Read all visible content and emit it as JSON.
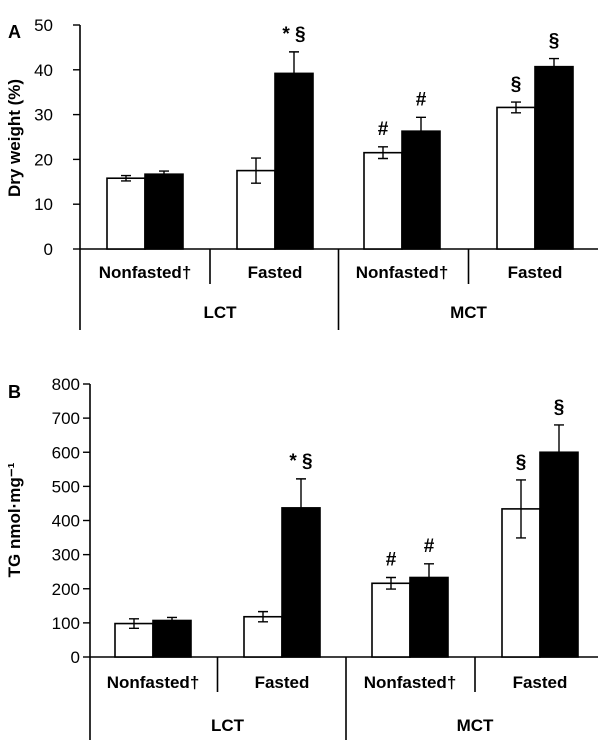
{
  "chart_data": [
    {
      "type": "bar",
      "panel": "A",
      "ylabel": "Dry weight (%)",
      "ylim": [
        0,
        50
      ],
      "yticks": [
        "0",
        "10",
        "20",
        "30",
        "40",
        "50"
      ],
      "groups": [
        {
          "label": "Nonfasted†",
          "open": {
            "value": 15.8,
            "err": 0.6
          },
          "filled": {
            "value": 16.7,
            "err": 0.7
          },
          "open_mark": "",
          "filled_mark": ""
        },
        {
          "label": "Fasted",
          "open": {
            "value": 17.5,
            "err": 2.8
          },
          "filled": {
            "value": 39.2,
            "err": 4.8
          },
          "open_mark": "",
          "filled_mark": "* §"
        },
        {
          "label": "Nonfasted†",
          "open": {
            "value": 21.5,
            "err": 1.3
          },
          "filled": {
            "value": 26.3,
            "err": 3.1
          },
          "open_mark": "#",
          "filled_mark": "#"
        },
        {
          "label": "Fasted",
          "open": {
            "value": 31.6,
            "err": 1.2
          },
          "filled": {
            "value": 40.7,
            "err": 1.8
          },
          "open_mark": "§",
          "filled_mark": "§"
        }
      ],
      "categories": [
        "LCT",
        "MCT"
      ]
    },
    {
      "type": "bar",
      "panel": "B",
      "ylabel": "TG nmol·mg⁻¹",
      "ylim": [
        0,
        800
      ],
      "yticks": [
        "0",
        "100",
        "200",
        "300",
        "400",
        "500",
        "600",
        "700",
        "800"
      ],
      "groups": [
        {
          "label": "Nonfasted†",
          "open": {
            "value": 98,
            "err": 14
          },
          "filled": {
            "value": 107,
            "err": 9
          },
          "open_mark": "",
          "filled_mark": ""
        },
        {
          "label": "Fasted",
          "open": {
            "value": 118,
            "err": 15
          },
          "filled": {
            "value": 437,
            "err": 85
          },
          "open_mark": "",
          "filled_mark": "* §"
        },
        {
          "label": "Nonfasted†",
          "open": {
            "value": 216,
            "err": 17
          },
          "filled": {
            "value": 233,
            "err": 40
          },
          "open_mark": "#",
          "filled_mark": "#"
        },
        {
          "label": "Fasted",
          "open": {
            "value": 434,
            "err": 85
          },
          "filled": {
            "value": 600,
            "err": 80
          },
          "open_mark": "§",
          "filled_mark": "§"
        }
      ],
      "categories": [
        "LCT",
        "MCT"
      ]
    }
  ]
}
